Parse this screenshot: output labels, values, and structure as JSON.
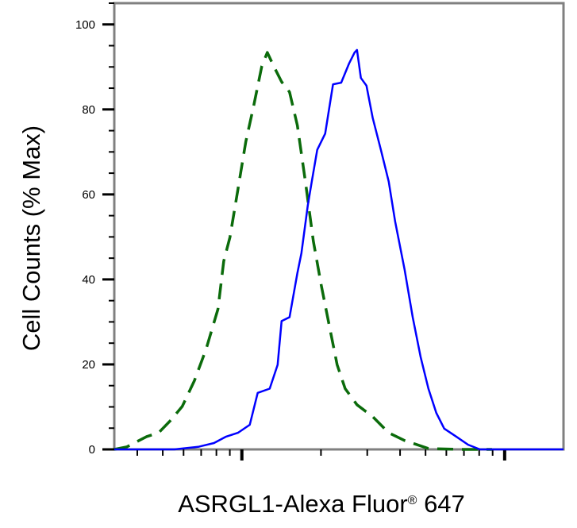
{
  "chart_data": {
    "type": "line",
    "title": "",
    "xlabel": "ASRGL1-Alexa Fluor",
    "xlabel_mark": "®",
    "xlabel_suffix": " 647",
    "ylabel": "Cell Counts (% Max)",
    "x_scale": "log",
    "x_tick_labels_shown": false,
    "xlim": [
      327,
      16749
    ],
    "ylim": [
      0,
      105
    ],
    "y_ticks": [
      0,
      20,
      40,
      60,
      80,
      100
    ],
    "y_tick_labels": [
      "0",
      "20",
      "40",
      "60",
      "80",
      "100"
    ],
    "y_minor_step": 5,
    "grid": false,
    "legend": "none",
    "series": [
      {
        "style": "dashed",
        "color": "#0b6b0b",
        "x": [
          327,
          365,
          434,
          482,
          535,
          593,
          659,
          731,
          811,
          853,
          901,
          966,
          1035,
          1110,
          1191,
          1250,
          1321,
          1416,
          1518,
          1627,
          1745,
          1871,
          2005,
          2149,
          2305,
          2472,
          2742,
          3148,
          3622,
          4159,
          5129,
          6776,
          8954
        ],
        "y": [
          0,
          0.6,
          3.0,
          3.9,
          6.8,
          10.1,
          16.1,
          23.6,
          33.0,
          44.3,
          49.9,
          61.2,
          72.4,
          80.9,
          90.2,
          93.4,
          90.2,
          86.5,
          84.1,
          76.2,
          63.0,
          49.0,
          38.6,
          29.3,
          19.9,
          14.3,
          10.5,
          7.7,
          3.9,
          2.1,
          0.2,
          0,
          0
        ]
      },
      {
        "style": "solid",
        "color": "#0000ff",
        "x": [
          327,
          482,
          553,
          682,
          783,
          871,
          966,
          1072,
          1149,
          1276,
          1368,
          1416,
          1518,
          1627,
          1686,
          1782,
          1845,
          1936,
          2075,
          2223,
          2388,
          2559,
          2685,
          2742,
          2838,
          2979,
          3148,
          3381,
          3622,
          3828,
          4159,
          4467,
          4786,
          5129,
          5495,
          5888,
          6546,
          7261,
          8054,
          8954,
          16749
        ],
        "y": [
          0,
          0,
          0,
          0.6,
          1.5,
          3.0,
          3.9,
          5.8,
          13.3,
          14.3,
          19.9,
          30.2,
          31.1,
          41.5,
          46.2,
          57.4,
          63.0,
          70.5,
          74.3,
          85.9,
          86.3,
          90.8,
          93.4,
          94.0,
          87.4,
          85.6,
          78.0,
          70.5,
          63.0,
          53.7,
          42.4,
          31.1,
          21.8,
          14.3,
          8.6,
          4.9,
          3.0,
          1.1,
          0,
          0,
          0
        ]
      }
    ]
  }
}
